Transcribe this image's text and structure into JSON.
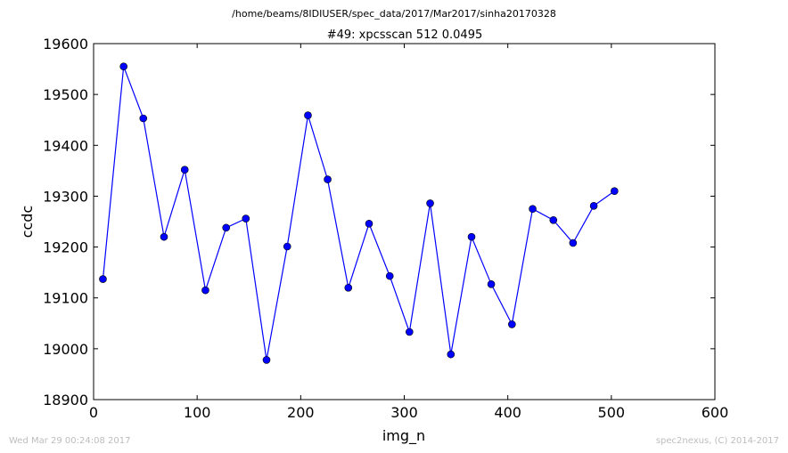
{
  "header": {
    "path": "/home/beams/8IDIUSER/spec_data/2017/Mar2017/sinha20170328"
  },
  "footer": {
    "timestamp": "Wed Mar 29 00:24:08 2017",
    "credit": "spec2nexus, (C) 2014-2017"
  },
  "colors": {
    "series": "#0000ff",
    "axes": "#000000",
    "footer_text": "#bdbdbd"
  },
  "chart_data": {
    "type": "line",
    "title": "#49: xpcsscan 512 0.0495",
    "xlabel": "img_n",
    "ylabel": "ccdc",
    "xlim": [
      0,
      600
    ],
    "ylim": [
      18900,
      19600
    ],
    "xticks": [
      0,
      100,
      200,
      300,
      400,
      500,
      600
    ],
    "yticks": [
      18900,
      19000,
      19100,
      19200,
      19300,
      19400,
      19500,
      19600
    ],
    "grid": false,
    "markers": true,
    "x": [
      9,
      29,
      48,
      68,
      88,
      108,
      128,
      147,
      167,
      187,
      207,
      226,
      246,
      266,
      286,
      305,
      325,
      345,
      365,
      384,
      404,
      424,
      444,
      463,
      483,
      503
    ],
    "y": [
      19137,
      19555,
      19453,
      19220,
      19352,
      19115,
      19238,
      19256,
      18978,
      19201,
      19459,
      19333,
      19120,
      19246,
      19143,
      19033,
      19286,
      18989,
      19220,
      19127,
      19048,
      19275,
      19253,
      19208,
      19281,
      19310
    ]
  }
}
